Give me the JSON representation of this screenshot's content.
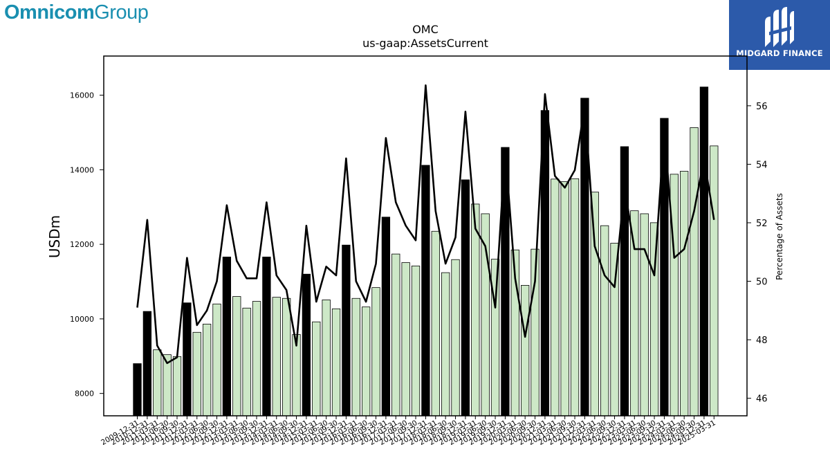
{
  "brand": {
    "left_part1": "Omnicom",
    "left_part2": "Group",
    "right_name": "MIDGARD FINANCE",
    "left_color": "#1a8fb0",
    "right_bg": "#2c5aaa"
  },
  "chart_data": {
    "type": "bar",
    "title": "OMC",
    "subtitle": "us-gaap:AssetsCurrent",
    "ylabel": "USDm",
    "y2label": "Percentage of Assets",
    "ylim": [
      7400,
      17050
    ],
    "y2lim": [
      45.4,
      57.7
    ],
    "yticks": [
      8000,
      10000,
      12000,
      14000,
      16000
    ],
    "y2ticks": [
      46,
      48,
      50,
      52,
      54,
      56
    ],
    "grid": false,
    "colors": {
      "q4_bar": "#000000",
      "other_bar": "#cde8c7",
      "line": "#000000"
    },
    "categories": [
      "2009-12-31",
      "2010-12-31",
      "2011-03-31",
      "2011-06-30",
      "2011-09-30",
      "2011-12-31",
      "2012-03-31",
      "2012-06-30",
      "2012-09-30",
      "2012-12-31",
      "2013-03-31",
      "2013-06-30",
      "2013-09-30",
      "2013-12-31",
      "2014-03-31",
      "2014-06-30",
      "2014-09-30",
      "2014-12-31",
      "2015-03-31",
      "2015-06-30",
      "2015-09-30",
      "2015-12-31",
      "2016-03-31",
      "2016-06-30",
      "2016-09-30",
      "2016-12-31",
      "2017-03-31",
      "2017-06-30",
      "2017-09-30",
      "2017-12-31",
      "2018-03-31",
      "2018-06-30",
      "2018-09-30",
      "2018-12-31",
      "2019-03-31",
      "2019-06-30",
      "2019-09-30",
      "2019-12-31",
      "2020-03-31",
      "2020-06-30",
      "2020-09-30",
      "2020-12-31",
      "2021-03-31",
      "2021-06-30",
      "2021-09-30",
      "2021-12-31",
      "2022-03-31",
      "2022-06-30",
      "2022-09-30",
      "2022-12-31",
      "2023-03-31",
      "2023-06-30",
      "2023-09-30",
      "2023-12-31",
      "2024-03-31",
      "2024-06-30",
      "2024-09-30",
      "2024-12-31",
      "2025-03-31"
    ],
    "series": [
      {
        "type": "bar",
        "axis": "left",
        "values": [
          8800,
          10200,
          9170,
          9040,
          8990,
          10430,
          9640,
          9860,
          10400,
          11660,
          10600,
          10290,
          10470,
          11660,
          10580,
          10550,
          9580,
          11200,
          9920,
          10510,
          10270,
          11980,
          10550,
          10320,
          10840,
          12730,
          11740,
          11510,
          11420,
          14120,
          12350,
          11240,
          11590,
          13730,
          13080,
          12820,
          11600,
          14600,
          11850,
          10900,
          11870,
          15590,
          13750,
          13680,
          13760,
          15920,
          13400,
          12500,
          12030,
          14620,
          12900,
          12820,
          12580,
          15380,
          13880,
          13960,
          15130,
          16220,
          14640
        ]
      },
      {
        "type": "line",
        "axis": "right",
        "values": [
          49.1,
          52.1,
          47.8,
          47.2,
          47.4,
          50.8,
          48.5,
          49.0,
          50.0,
          52.6,
          50.7,
          50.1,
          50.1,
          52.7,
          50.2,
          49.7,
          47.8,
          51.9,
          49.3,
          50.5,
          50.2,
          54.2,
          50.0,
          49.3,
          50.6,
          54.9,
          52.7,
          51.9,
          51.4,
          56.7,
          52.4,
          50.6,
          51.5,
          55.8,
          51.8,
          51.2,
          49.1,
          54.5,
          50.1,
          48.1,
          50.0,
          56.4,
          53.6,
          53.2,
          53.8,
          56.0,
          51.2,
          50.2,
          49.8,
          53.2,
          51.1,
          51.1,
          50.2,
          55.2,
          50.8,
          51.1,
          52.4,
          54.2,
          52.1
        ]
      }
    ]
  }
}
